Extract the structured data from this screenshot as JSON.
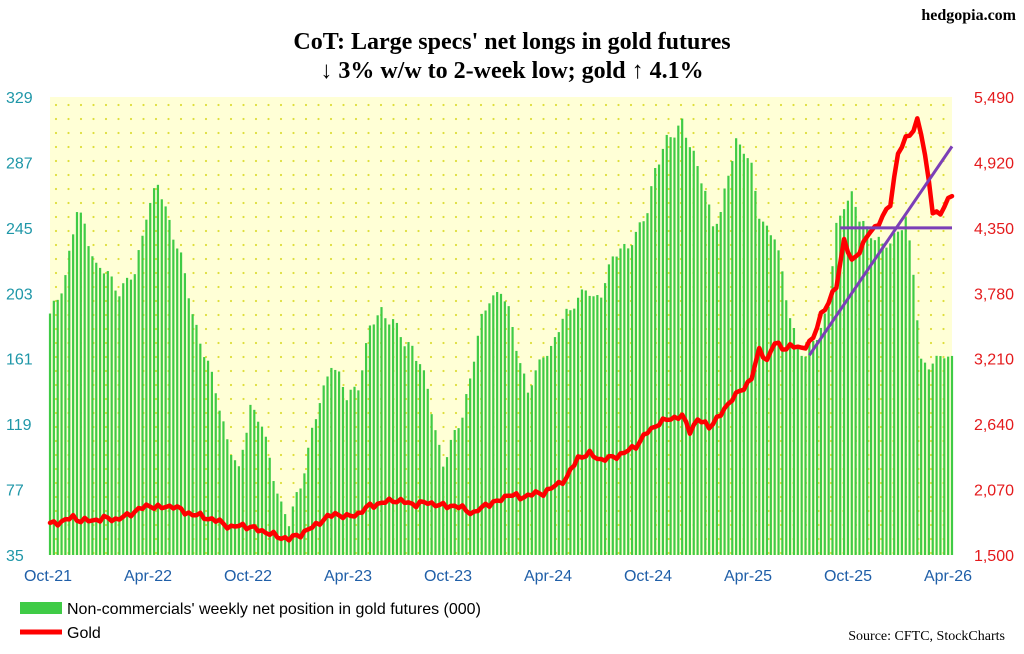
{
  "watermark": "hedgopia.com",
  "source": "Source: CFTC, StockCharts",
  "colors": {
    "bars": "#3fcb46",
    "gold": "#ff0000",
    "trendline": "#7b3fb7",
    "left_axis": "#1f97a8",
    "right_axis": "#e41a1c",
    "x_axis": "#1f5fa8",
    "plot_bg": "#ffffd6",
    "dots": "#dede3c"
  },
  "chart_data": {
    "type": "bar",
    "title": "CoT: Large specs' net longs in gold futures",
    "subtitle": "↓ 3% w/w to 2-week low; gold ↑ 4.1%",
    "grid": false,
    "legend_position": "bottom-left",
    "x_tick_labels": [
      "Oct-21",
      "Apr-22",
      "Oct-22",
      "Apr-23",
      "Oct-23",
      "Apr-24",
      "Oct-24",
      "Apr-25",
      "Oct-25",
      "Apr-26"
    ],
    "y_left": {
      "ticks": [
        35,
        77,
        119,
        161,
        203,
        245,
        287,
        329
      ],
      "tick_labels": [
        "35",
        "77",
        "119",
        "161",
        "203",
        "245",
        "287",
        "329"
      ],
      "range": [
        35,
        329
      ]
    },
    "y_right": {
      "ticks": [
        1500,
        2070,
        2640,
        3210,
        3780,
        4350,
        4920,
        5490
      ],
      "tick_labels": [
        "1,500",
        "2,070",
        "2,640",
        "3,210",
        "3,780",
        "4,350",
        "4,920",
        "5,490"
      ],
      "range": [
        1500,
        5490
      ]
    },
    "x_range": [
      0,
      234
    ],
    "series": [
      {
        "name": "Non-commercials' weekly net position in gold futures (000)",
        "kind": "bar",
        "axis": "left",
        "keypoints": [
          [
            0,
            188
          ],
          [
            2,
            200
          ],
          [
            4,
            215
          ],
          [
            7,
            255
          ],
          [
            9,
            247
          ],
          [
            12,
            220
          ],
          [
            15,
            215
          ],
          [
            18,
            205
          ],
          [
            22,
            215
          ],
          [
            25,
            255
          ],
          [
            28,
            272
          ],
          [
            31,
            250
          ],
          [
            34,
            225
          ],
          [
            37,
            190
          ],
          [
            40,
            165
          ],
          [
            43,
            140
          ],
          [
            46,
            110
          ],
          [
            49,
            87
          ],
          [
            52,
            132
          ],
          [
            55,
            118
          ],
          [
            57,
            95
          ],
          [
            60,
            68
          ],
          [
            62,
            55
          ],
          [
            65,
            80
          ],
          [
            68,
            115
          ],
          [
            71,
            140
          ],
          [
            73,
            160
          ],
          [
            75,
            150
          ],
          [
            77,
            135
          ],
          [
            80,
            145
          ],
          [
            83,
            180
          ],
          [
            86,
            192
          ],
          [
            89,
            185
          ],
          [
            92,
            170
          ],
          [
            94,
            170
          ],
          [
            96,
            158
          ],
          [
            98,
            140
          ],
          [
            100,
            115
          ],
          [
            102,
            95
          ],
          [
            104,
            105
          ],
          [
            107,
            125
          ],
          [
            110,
            162
          ],
          [
            112,
            185
          ],
          [
            114,
            200
          ],
          [
            117,
            205
          ],
          [
            119,
            190
          ],
          [
            121,
            170
          ],
          [
            124,
            140
          ],
          [
            126,
            150
          ],
          [
            128,
            165
          ],
          [
            130,
            168
          ],
          [
            133,
            185
          ],
          [
            136,
            198
          ],
          [
            139,
            205
          ],
          [
            141,
            198
          ],
          [
            143,
            205
          ],
          [
            146,
            225
          ],
          [
            149,
            233
          ],
          [
            152,
            240
          ],
          [
            155,
            255
          ],
          [
            157,
            285
          ],
          [
            160,
            300
          ],
          [
            162,
            305
          ],
          [
            164,
            315
          ],
          [
            166,
            298
          ],
          [
            168,
            282
          ],
          [
            170,
            270
          ],
          [
            172,
            248
          ],
          [
            174,
            252
          ],
          [
            176,
            280
          ],
          [
            178,
            302
          ],
          [
            180,
            295
          ],
          [
            182,
            282
          ],
          [
            184,
            255
          ],
          [
            186,
            245
          ],
          [
            188,
            238
          ],
          [
            190,
            215
          ],
          [
            192,
            190
          ],
          [
            194,
            168
          ],
          [
            196,
            160
          ],
          [
            198,
            175
          ],
          [
            200,
            180
          ],
          [
            202,
            195
          ],
          [
            204,
            245
          ],
          [
            206,
            262
          ],
          [
            208,
            265
          ],
          [
            210,
            250
          ],
          [
            212,
            245
          ],
          [
            214,
            240
          ],
          [
            216,
            232
          ],
          [
            218,
            235
          ],
          [
            220,
            245
          ],
          [
            222,
            250
          ],
          [
            224,
            215
          ],
          [
            226,
            160
          ],
          [
            228,
            158
          ],
          [
            230,
            158
          ],
          [
            232,
            164
          ],
          [
            234,
            162
          ]
        ]
      },
      {
        "name": "Gold",
        "kind": "line",
        "axis": "right",
        "keypoints": [
          [
            0,
            1770
          ],
          [
            3,
            1790
          ],
          [
            6,
            1830
          ],
          [
            8,
            1800
          ],
          [
            11,
            1800
          ],
          [
            14,
            1820
          ],
          [
            17,
            1810
          ],
          [
            20,
            1840
          ],
          [
            23,
            1900
          ],
          [
            26,
            1930
          ],
          [
            29,
            1910
          ],
          [
            32,
            1930
          ],
          [
            35,
            1870
          ],
          [
            38,
            1850
          ],
          [
            41,
            1820
          ],
          [
            44,
            1790
          ],
          [
            47,
            1740
          ],
          [
            50,
            1760
          ],
          [
            53,
            1730
          ],
          [
            56,
            1700
          ],
          [
            59,
            1660
          ],
          [
            62,
            1640
          ],
          [
            65,
            1680
          ],
          [
            68,
            1740
          ],
          [
            71,
            1810
          ],
          [
            74,
            1860
          ],
          [
            77,
            1830
          ],
          [
            80,
            1860
          ],
          [
            83,
            1930
          ],
          [
            86,
            1950
          ],
          [
            89,
            1980
          ],
          [
            92,
            1960
          ],
          [
            95,
            1940
          ],
          [
            98,
            1960
          ],
          [
            101,
            1930
          ],
          [
            104,
            1930
          ],
          [
            107,
            1910
          ],
          [
            110,
            1860
          ],
          [
            113,
            1940
          ],
          [
            116,
            1960
          ],
          [
            119,
            2030
          ],
          [
            122,
            2000
          ],
          [
            125,
            2030
          ],
          [
            128,
            2040
          ],
          [
            131,
            2100
          ],
          [
            134,
            2170
          ],
          [
            137,
            2350
          ],
          [
            140,
            2380
          ],
          [
            143,
            2330
          ],
          [
            146,
            2350
          ],
          [
            149,
            2390
          ],
          [
            152,
            2450
          ],
          [
            155,
            2570
          ],
          [
            158,
            2650
          ],
          [
            161,
            2690
          ],
          [
            164,
            2710
          ],
          [
            166,
            2580
          ],
          [
            168,
            2680
          ],
          [
            171,
            2620
          ],
          [
            174,
            2720
          ],
          [
            177,
            2870
          ],
          [
            180,
            2950
          ],
          [
            182,
            3050
          ],
          [
            184,
            3280
          ],
          [
            186,
            3200
          ],
          [
            188,
            3350
          ],
          [
            190,
            3300
          ],
          [
            192,
            3320
          ],
          [
            195,
            3300
          ],
          [
            198,
            3380
          ],
          [
            200,
            3600
          ],
          [
            202,
            3700
          ],
          [
            204,
            3840
          ],
          [
            206,
            4250
          ],
          [
            208,
            4050
          ],
          [
            210,
            4150
          ],
          [
            212,
            4280
          ],
          [
            214,
            4350
          ],
          [
            216,
            4450
          ],
          [
            218,
            4550
          ],
          [
            220,
            5010
          ],
          [
            222,
            5120
          ],
          [
            224,
            5200
          ],
          [
            225,
            5300
          ],
          [
            226,
            5180
          ],
          [
            228,
            4750
          ],
          [
            229,
            4500
          ],
          [
            231,
            4470
          ],
          [
            234,
            4650
          ]
        ]
      }
    ],
    "annotations": [
      {
        "kind": "trendline",
        "from": [
          197,
          3240
        ],
        "to": [
          234,
          5060
        ]
      },
      {
        "kind": "horizontal_line",
        "from": [
          205,
          4350
        ],
        "to": [
          234,
          4350
        ]
      }
    ]
  }
}
